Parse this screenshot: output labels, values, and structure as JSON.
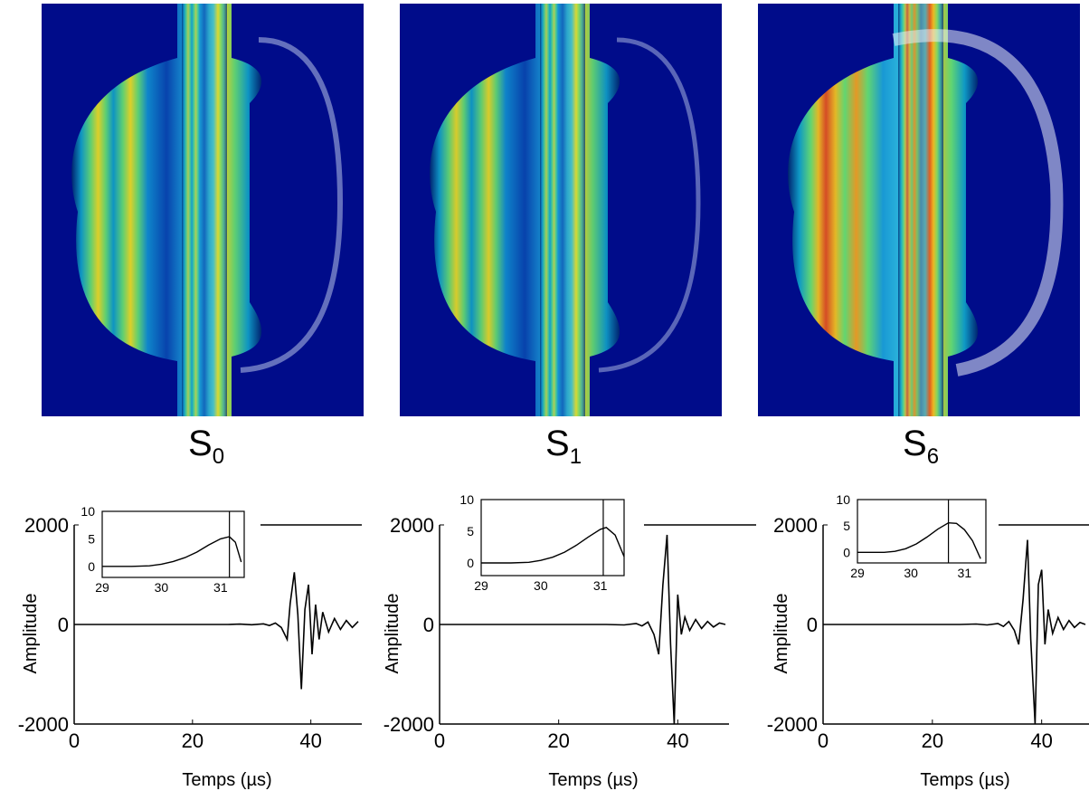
{
  "fields": [
    {
      "label_main": "S",
      "label_sub": "0"
    },
    {
      "label_main": "S",
      "label_sub": "1"
    },
    {
      "label_main": "S",
      "label_sub": "6"
    }
  ],
  "chart_data": [
    {
      "type": "line",
      "xlabel": "Temps (µs)",
      "ylabel": "Amplitude",
      "xlim": [
        0,
        48
      ],
      "ylim": [
        -2000,
        2000
      ],
      "xticks": [
        0,
        20,
        40
      ],
      "yticks": [
        2000,
        0,
        -2000
      ],
      "signal": {
        "onset": 26.5,
        "center": 37.6,
        "peak": 1050,
        "trough": -1300,
        "points": [
          [
            0,
            0
          ],
          [
            26,
            0
          ],
          [
            28,
            8
          ],
          [
            30,
            -6
          ],
          [
            32,
            12
          ],
          [
            33,
            -20
          ],
          [
            34,
            30
          ],
          [
            35,
            -60
          ],
          [
            36,
            -300
          ],
          [
            36.5,
            420
          ],
          [
            37.2,
            1050
          ],
          [
            37.8,
            200
          ],
          [
            38.4,
            -1300
          ],
          [
            39,
            300
          ],
          [
            39.6,
            800
          ],
          [
            40.2,
            -600
          ],
          [
            40.8,
            400
          ],
          [
            41.4,
            -300
          ],
          [
            42,
            250
          ],
          [
            43,
            -150
          ],
          [
            44,
            120
          ],
          [
            45,
            -100
          ],
          [
            46,
            80
          ],
          [
            47,
            -60
          ],
          [
            48,
            60
          ]
        ]
      },
      "inset": {
        "xlim": [
          29,
          31.4
        ],
        "ylim": [
          -2,
          10
        ],
        "xticks": [
          29,
          30,
          31
        ],
        "yticks": [
          10,
          5,
          0
        ],
        "marker_x": 31.15,
        "curve": [
          [
            29,
            0
          ],
          [
            29.5,
            0
          ],
          [
            29.8,
            0.1
          ],
          [
            30,
            0.4
          ],
          [
            30.2,
            0.9
          ],
          [
            30.4,
            1.6
          ],
          [
            30.6,
            2.6
          ],
          [
            30.8,
            3.9
          ],
          [
            31,
            5.0
          ],
          [
            31.15,
            5.4
          ],
          [
            31.25,
            4.4
          ],
          [
            31.35,
            0.8
          ]
        ]
      }
    },
    {
      "type": "line",
      "xlabel": "Temps (µs)",
      "ylabel": "Amplitude",
      "xlim": [
        0,
        48
      ],
      "ylim": [
        -2000,
        2000
      ],
      "xticks": [
        0,
        20,
        40
      ],
      "yticks": [
        2000,
        0,
        -2000
      ],
      "signal": {
        "points": [
          [
            0,
            0
          ],
          [
            28,
            0
          ],
          [
            31,
            -10
          ],
          [
            33,
            20
          ],
          [
            34,
            -30
          ],
          [
            35,
            50
          ],
          [
            36,
            -200
          ],
          [
            36.8,
            -600
          ],
          [
            37.5,
            800
          ],
          [
            38.2,
            1800
          ],
          [
            38.8,
            -400
          ],
          [
            39.4,
            -2000
          ],
          [
            40,
            600
          ],
          [
            40.6,
            -200
          ],
          [
            41.2,
            150
          ],
          [
            42,
            -120
          ],
          [
            43,
            100
          ],
          [
            44,
            -80
          ],
          [
            45,
            60
          ],
          [
            46,
            -50
          ],
          [
            47,
            30
          ],
          [
            48,
            0
          ]
        ]
      },
      "inset": {
        "xlim": [
          29,
          31.4
        ],
        "ylim": [
          -2,
          10
        ],
        "xticks": [
          29,
          30,
          31
        ],
        "yticks": [
          10,
          5,
          0
        ],
        "marker_x": 31.05,
        "curve": [
          [
            29,
            0
          ],
          [
            29.5,
            0
          ],
          [
            29.8,
            0.1
          ],
          [
            30,
            0.4
          ],
          [
            30.2,
            0.9
          ],
          [
            30.4,
            1.7
          ],
          [
            30.6,
            2.8
          ],
          [
            30.8,
            4.1
          ],
          [
            31,
            5.3
          ],
          [
            31.1,
            5.6
          ],
          [
            31.25,
            4.4
          ],
          [
            31.4,
            1.0
          ]
        ]
      }
    },
    {
      "type": "line",
      "xlabel": "Temps (µs)",
      "ylabel": "Amplitude",
      "xlim": [
        0,
        48
      ],
      "ylim": [
        -2000,
        2000
      ],
      "xticks": [
        0,
        20,
        40
      ],
      "yticks": [
        2000,
        0,
        -2000
      ],
      "signal": {
        "points": [
          [
            0,
            0
          ],
          [
            25,
            0
          ],
          [
            28,
            10
          ],
          [
            30,
            -10
          ],
          [
            32,
            20
          ],
          [
            33,
            -40
          ],
          [
            34,
            60
          ],
          [
            35,
            -120
          ],
          [
            35.8,
            -400
          ],
          [
            36.6,
            500
          ],
          [
            37.4,
            1700
          ],
          [
            38,
            -300
          ],
          [
            38.8,
            -2000
          ],
          [
            39.4,
            800
          ],
          [
            40,
            1100
          ],
          [
            40.6,
            -400
          ],
          [
            41.2,
            300
          ],
          [
            42,
            -180
          ],
          [
            43,
            140
          ],
          [
            44,
            -100
          ],
          [
            45,
            80
          ],
          [
            46,
            -60
          ],
          [
            47,
            40
          ],
          [
            48,
            0
          ]
        ]
      },
      "inset": {
        "xlim": [
          29,
          31.4
        ],
        "ylim": [
          -2,
          10
        ],
        "xticks": [
          29,
          30,
          31
        ],
        "yticks": [
          10,
          5,
          0
        ],
        "marker_x": 30.7,
        "curve": [
          [
            29,
            0
          ],
          [
            29.5,
            0
          ],
          [
            29.7,
            0.2
          ],
          [
            29.9,
            0.7
          ],
          [
            30.1,
            1.6
          ],
          [
            30.3,
            2.9
          ],
          [
            30.5,
            4.4
          ],
          [
            30.7,
            5.6
          ],
          [
            30.85,
            5.5
          ],
          [
            31,
            4.3
          ],
          [
            31.15,
            2.2
          ],
          [
            31.3,
            -1.2
          ]
        ]
      }
    }
  ]
}
